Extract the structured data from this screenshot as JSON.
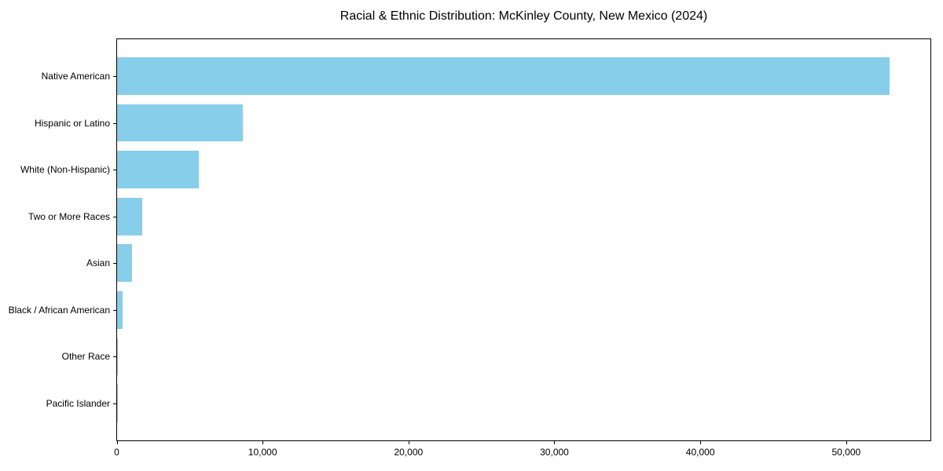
{
  "chart_data": {
    "type": "bar",
    "orientation": "horizontal",
    "title": "Racial & Ethnic Distribution: McKinley County, New Mexico (2024)",
    "categories": [
      "Native American",
      "Hispanic or Latino",
      "White (Non-Hispanic)",
      "Two or More Races",
      "Asian",
      "Black / African American",
      "Other Race",
      "Pacific Islander"
    ],
    "values": [
      53000,
      8600,
      5600,
      1700,
      1000,
      400,
      80,
      50
    ],
    "xlabel": "",
    "ylabel": "",
    "xlim": [
      0,
      55800
    ],
    "xticks": [
      0,
      10000,
      20000,
      30000,
      40000,
      50000
    ],
    "xtick_labels": [
      "0",
      "10,000",
      "20,000",
      "30,000",
      "40,000",
      "50,000"
    ],
    "bar_color": "#87CEEB",
    "axis_color": "#000000",
    "background_color": "#FFFFFF",
    "grid": false,
    "legend_position": "none"
  }
}
